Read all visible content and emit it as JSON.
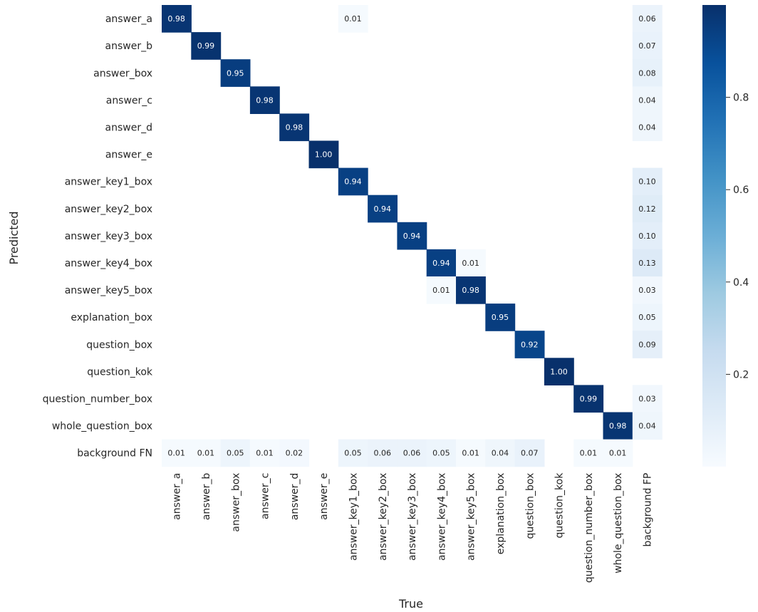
{
  "chart_data": {
    "type": "heatmap",
    "title": "",
    "xlabel": "True",
    "ylabel": "Predicted",
    "colormap": "Blues",
    "colorbar": {
      "ticks": [
        "0.2",
        "0.4",
        "0.6",
        "0.8"
      ],
      "tick_values": [
        0.2,
        0.4,
        0.6,
        0.8
      ],
      "range": [
        0,
        1
      ]
    },
    "row_labels": [
      "answer_a",
      "answer_b",
      "answer_box",
      "answer_c",
      "answer_d",
      "answer_e",
      "answer_key1_box",
      "answer_key2_box",
      "answer_key3_box",
      "answer_key4_box",
      "answer_key5_box",
      "explanation_box",
      "question_box",
      "question_kok",
      "question_number_box",
      "whole_question_box",
      "background FN"
    ],
    "col_labels": [
      "answer_a",
      "answer_b",
      "answer_box",
      "answer_c",
      "answer_d",
      "answer_e",
      "answer_key1_box",
      "answer_key2_box",
      "answer_key3_box",
      "answer_key4_box",
      "answer_key5_box",
      "explanation_box",
      "question_box",
      "question_kok",
      "question_number_box",
      "whole_question_box",
      "background FP"
    ],
    "values": [
      [
        0.98,
        null,
        null,
        null,
        null,
        null,
        0.01,
        null,
        null,
        null,
        null,
        null,
        null,
        null,
        null,
        null,
        0.06
      ],
      [
        null,
        0.99,
        null,
        null,
        null,
        null,
        null,
        null,
        null,
        null,
        null,
        null,
        null,
        null,
        null,
        null,
        0.07
      ],
      [
        null,
        null,
        0.95,
        null,
        null,
        null,
        null,
        null,
        null,
        null,
        null,
        null,
        null,
        null,
        null,
        null,
        0.08
      ],
      [
        null,
        null,
        null,
        0.98,
        null,
        null,
        null,
        null,
        null,
        null,
        null,
        null,
        null,
        null,
        null,
        null,
        0.04
      ],
      [
        null,
        null,
        null,
        null,
        0.98,
        null,
        null,
        null,
        null,
        null,
        null,
        null,
        null,
        null,
        null,
        null,
        0.04
      ],
      [
        null,
        null,
        null,
        null,
        null,
        1.0,
        null,
        null,
        null,
        null,
        null,
        null,
        null,
        null,
        null,
        null,
        null
      ],
      [
        null,
        null,
        null,
        null,
        null,
        null,
        0.94,
        null,
        null,
        null,
        null,
        null,
        null,
        null,
        null,
        null,
        0.1
      ],
      [
        null,
        null,
        null,
        null,
        null,
        null,
        null,
        0.94,
        null,
        null,
        null,
        null,
        null,
        null,
        null,
        null,
        0.12
      ],
      [
        null,
        null,
        null,
        null,
        null,
        null,
        null,
        null,
        0.94,
        null,
        null,
        null,
        null,
        null,
        null,
        null,
        0.1
      ],
      [
        null,
        null,
        null,
        null,
        null,
        null,
        null,
        null,
        null,
        0.94,
        0.01,
        null,
        null,
        null,
        null,
        null,
        0.13
      ],
      [
        null,
        null,
        null,
        null,
        null,
        null,
        null,
        null,
        null,
        0.01,
        0.98,
        null,
        null,
        null,
        null,
        null,
        0.03
      ],
      [
        null,
        null,
        null,
        null,
        null,
        null,
        null,
        null,
        null,
        null,
        null,
        0.95,
        null,
        null,
        null,
        null,
        0.05
      ],
      [
        null,
        null,
        null,
        null,
        null,
        null,
        null,
        null,
        null,
        null,
        null,
        null,
        0.92,
        null,
        null,
        null,
        0.09
      ],
      [
        null,
        null,
        null,
        null,
        null,
        null,
        null,
        null,
        null,
        null,
        null,
        null,
        null,
        1.0,
        null,
        null,
        null
      ],
      [
        null,
        null,
        null,
        null,
        null,
        null,
        null,
        null,
        null,
        null,
        null,
        null,
        null,
        null,
        0.99,
        null,
        0.03
      ],
      [
        null,
        null,
        null,
        null,
        null,
        null,
        null,
        null,
        null,
        null,
        null,
        null,
        null,
        null,
        null,
        0.98,
        0.04
      ],
      [
        0.01,
        0.01,
        0.05,
        0.01,
        0.02,
        null,
        0.05,
        0.06,
        0.06,
        0.05,
        0.01,
        0.04,
        0.07,
        null,
        0.01,
        0.01,
        null
      ]
    ]
  }
}
